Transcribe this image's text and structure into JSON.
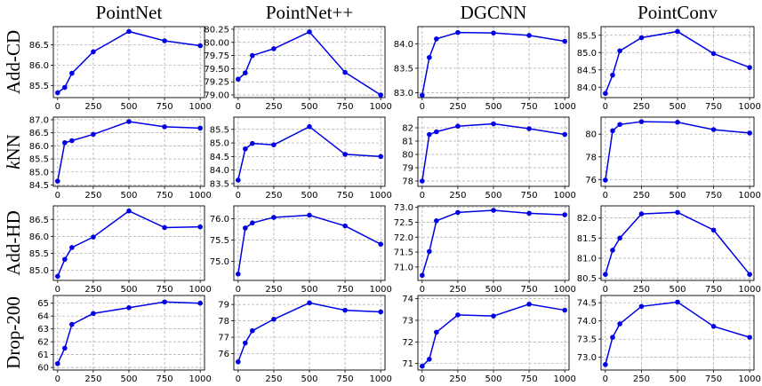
{
  "chart_data": {
    "type": "line",
    "layout": "grid",
    "x_ticks": [
      0,
      250,
      500,
      750,
      1000
    ],
    "x": [
      0,
      50,
      100,
      250,
      500,
      750,
      1000
    ],
    "xlim": [
      -30,
      1030
    ],
    "columns": [
      "PointNet",
      "PointNet++",
      "DGCNN",
      "PointConv"
    ],
    "rows": [
      {
        "label": "Add-CD",
        "label_italic_prefix": "",
        "label_rest": "Add-CD"
      },
      {
        "label": "kNN",
        "label_italic_prefix": "k",
        "label_rest": "NN"
      },
      {
        "label": "Add-HD",
        "label_italic_prefix": "",
        "label_rest": "Add-HD"
      },
      {
        "label": "Drop-200",
        "label_italic_prefix": "",
        "label_rest": "Drop-200"
      }
    ],
    "color": "#0000e6",
    "grid": true,
    "panels": [
      [
        {
          "ylim": [
            85.2,
            86.95
          ],
          "yticks": [
            "85.5",
            "86.0",
            "86.5"
          ],
          "y": [
            85.32,
            85.45,
            85.8,
            86.33,
            86.83,
            86.6,
            86.48
          ]
        },
        {
          "ylim": [
            78.95,
            80.3
          ],
          "yticks": [
            "79.00",
            "79.25",
            "79.50",
            "79.75",
            "80.00",
            "80.25"
          ],
          "y": [
            79.3,
            79.42,
            79.75,
            79.88,
            80.2,
            79.43,
            79.0
          ]
        },
        {
          "ylim": [
            82.9,
            84.35
          ],
          "yticks": [
            "83.0",
            "83.5",
            "84.0"
          ],
          "y": [
            82.95,
            83.72,
            84.1,
            84.23,
            84.22,
            84.17,
            84.05
          ]
        },
        {
          "ylim": [
            83.7,
            85.75
          ],
          "yticks": [
            "84.0",
            "84.5",
            "85.0",
            "85.5"
          ],
          "y": [
            83.82,
            84.35,
            85.05,
            85.43,
            85.61,
            84.97,
            84.57
          ]
        }
      ],
      [
        {
          "ylim": [
            84.45,
            87.1
          ],
          "yticks": [
            "84.5",
            "85.0",
            "85.5",
            "86.0",
            "86.5",
            "87.0"
          ],
          "y": [
            84.65,
            86.12,
            86.2,
            86.44,
            86.93,
            86.73,
            86.68
          ]
        },
        {
          "ylim": [
            83.4,
            85.95
          ],
          "yticks": [
            "83.5",
            "84.0",
            "84.5",
            "85.0",
            "85.5"
          ],
          "y": [
            83.63,
            84.78,
            84.98,
            84.93,
            85.6,
            84.58,
            84.5
          ]
        },
        {
          "ylim": [
            77.6,
            82.8
          ],
          "yticks": [
            "78",
            "79",
            "80",
            "81",
            "82"
          ],
          "y": [
            78.0,
            81.5,
            81.7,
            82.12,
            82.3,
            81.93,
            81.5
          ]
        },
        {
          "ylim": [
            75.4,
            81.5
          ],
          "yticks": [
            "76",
            "78",
            "80"
          ],
          "y": [
            75.95,
            80.3,
            80.85,
            81.1,
            81.05,
            80.4,
            80.1
          ]
        }
      ],
      [
        {
          "ylim": [
            84.7,
            86.9
          ],
          "yticks": [
            "85.0",
            "85.5",
            "86.0",
            "86.5"
          ],
          "y": [
            84.82,
            85.32,
            85.67,
            85.98,
            86.75,
            86.26,
            86.28
          ]
        },
        {
          "ylim": [
            74.55,
            76.3
          ],
          "yticks": [
            "75.0",
            "75.5",
            "76.0"
          ],
          "y": [
            74.7,
            75.78,
            75.9,
            76.03,
            76.08,
            75.83,
            75.4
          ]
        },
        {
          "ylim": [
            70.55,
            73.05
          ],
          "yticks": [
            "71.0",
            "71.5",
            "72.0",
            "72.5",
            "73.0"
          ],
          "y": [
            70.72,
            71.52,
            72.55,
            72.83,
            72.9,
            72.8,
            72.75
          ]
        },
        {
          "ylim": [
            80.45,
            82.3
          ],
          "yticks": [
            "80.5",
            "81.0",
            "81.5",
            "82.0"
          ],
          "y": [
            80.6,
            81.2,
            81.5,
            82.1,
            82.14,
            81.7,
            80.6
          ]
        }
      ],
      [
        {
          "ylim": [
            59.8,
            65.6
          ],
          "yticks": [
            "60",
            "61",
            "62",
            "63",
            "64",
            "65"
          ],
          "y": [
            60.3,
            61.5,
            63.35,
            64.2,
            64.65,
            65.1,
            65.0
          ]
        },
        {
          "ylim": [
            75.0,
            79.55
          ],
          "yticks": [
            "76",
            "77",
            "78",
            "79"
          ],
          "y": [
            75.5,
            76.65,
            77.4,
            78.1,
            79.1,
            78.65,
            78.55
          ]
        },
        {
          "ylim": [
            70.7,
            74.15
          ],
          "yticks": [
            "71",
            "72",
            "73",
            "74"
          ],
          "y": [
            70.88,
            71.2,
            72.45,
            73.25,
            73.2,
            73.75,
            73.47
          ]
        },
        {
          "ylim": [
            72.65,
            74.7
          ],
          "yticks": [
            "73.0",
            "73.5",
            "74.0",
            "74.5"
          ],
          "y": [
            72.8,
            73.55,
            73.92,
            74.4,
            74.52,
            73.85,
            73.55
          ]
        }
      ]
    ]
  }
}
